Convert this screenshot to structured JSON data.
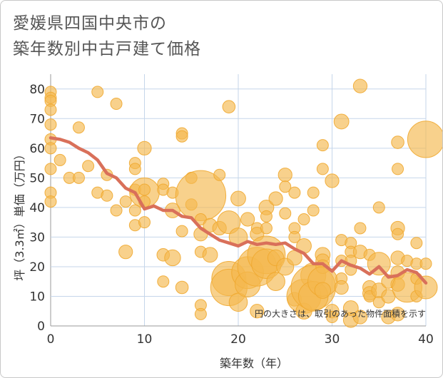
{
  "title": {
    "line1": "愛媛県四国中央市の",
    "line2": "築年数別中古戸建て価格"
  },
  "colors": {
    "bubble_fill": "#f5b84e",
    "bubble_stroke": "#f0a830",
    "line": "#d9705a",
    "grid": "#c5d6ea",
    "axis": "#999999"
  },
  "chart_data": {
    "type": "scatter",
    "xlabel": "築年数（年）",
    "ylabel": "坪（3.3㎡）単価（万円）",
    "xlim": [
      0,
      40
    ],
    "ylim": [
      0,
      85
    ],
    "xticks": [
      "0",
      "10",
      "20",
      "30",
      "40"
    ],
    "yticks": [
      "0",
      "10",
      "20",
      "30",
      "40",
      "50",
      "60",
      "70",
      "80"
    ],
    "note": "円の大きさは、取引のあった物件面積を示す",
    "average_line": {
      "x": [
        0,
        1,
        2,
        3,
        4,
        5,
        6,
        7,
        8,
        9,
        10,
        11,
        12,
        13,
        14,
        15,
        16,
        17,
        18,
        19,
        20,
        21,
        22,
        23,
        24,
        25,
        26,
        27,
        28,
        29,
        30,
        31,
        32,
        33,
        34,
        35,
        36,
        37,
        38,
        39,
        40
      ],
      "y": [
        63.5,
        63,
        62,
        60,
        58.5,
        56,
        51.5,
        50,
        46.5,
        45,
        39.5,
        40.5,
        39,
        39,
        37,
        36.5,
        33,
        31,
        29,
        28,
        27,
        28.5,
        27.5,
        28,
        27.5,
        28,
        26,
        24.5,
        21,
        21,
        18.5,
        22,
        20.5,
        19.5,
        17.5,
        20,
        16.5,
        17,
        19,
        18,
        14.5
      ]
    },
    "points": [
      {
        "x": 0,
        "y": 79,
        "s": 1
      },
      {
        "x": 0,
        "y": 77,
        "s": 1
      },
      {
        "x": 0,
        "y": 76,
        "s": 1
      },
      {
        "x": 0,
        "y": 73,
        "s": 1
      },
      {
        "x": 0,
        "y": 68,
        "s": 1
      },
      {
        "x": 0,
        "y": 63,
        "s": 1
      },
      {
        "x": 0,
        "y": 60,
        "s": 1
      },
      {
        "x": 0,
        "y": 53,
        "s": 1
      },
      {
        "x": 0,
        "y": 45,
        "s": 1
      },
      {
        "x": 0,
        "y": 42,
        "s": 1
      },
      {
        "x": 1,
        "y": 56,
        "s": 1
      },
      {
        "x": 2,
        "y": 50,
        "s": 1
      },
      {
        "x": 3,
        "y": 67,
        "s": 1
      },
      {
        "x": 3,
        "y": 50,
        "s": 1
      },
      {
        "x": 4,
        "y": 54,
        "s": 1
      },
      {
        "x": 5,
        "y": 79,
        "s": 1
      },
      {
        "x": 5,
        "y": 45,
        "s": 1
      },
      {
        "x": 6,
        "y": 51,
        "s": 1
      },
      {
        "x": 6,
        "y": 44,
        "s": 1
      },
      {
        "x": 7,
        "y": 75,
        "s": 1
      },
      {
        "x": 7,
        "y": 39,
        "s": 1
      },
      {
        "x": 8,
        "y": 42,
        "s": 1
      },
      {
        "x": 8,
        "y": 25,
        "s": 1.2
      },
      {
        "x": 9,
        "y": 55,
        "s": 1
      },
      {
        "x": 9,
        "y": 53,
        "s": 1
      },
      {
        "x": 9,
        "y": 46,
        "s": 1
      },
      {
        "x": 9,
        "y": 39,
        "s": 1
      },
      {
        "x": 9,
        "y": 34,
        "s": 1
      },
      {
        "x": 10,
        "y": 60,
        "s": 1.2
      },
      {
        "x": 10,
        "y": 45,
        "s": 2.6
      },
      {
        "x": 10,
        "y": 46,
        "s": 1
      },
      {
        "x": 10,
        "y": 42,
        "s": 1
      },
      {
        "x": 10,
        "y": 35,
        "s": 1
      },
      {
        "x": 12,
        "y": 48,
        "s": 1
      },
      {
        "x": 12,
        "y": 46,
        "s": 1
      },
      {
        "x": 12,
        "y": 24,
        "s": 1.1
      },
      {
        "x": 12,
        "y": 15,
        "s": 1
      },
      {
        "x": 13,
        "y": 45,
        "s": 1
      },
      {
        "x": 13,
        "y": 39,
        "s": 1.3
      },
      {
        "x": 13,
        "y": 23,
        "s": 1.4
      },
      {
        "x": 14,
        "y": 65,
        "s": 1
      },
      {
        "x": 14,
        "y": 64,
        "s": 1
      },
      {
        "x": 14,
        "y": 32,
        "s": 1
      },
      {
        "x": 14,
        "y": 13,
        "s": 1.1
      },
      {
        "x": 15,
        "y": 50,
        "s": 1
      },
      {
        "x": 15,
        "y": 41,
        "s": 1
      },
      {
        "x": 16,
        "y": 44,
        "s": 4.4
      },
      {
        "x": 16,
        "y": 36,
        "s": 1
      },
      {
        "x": 16,
        "y": 31,
        "s": 1.2
      },
      {
        "x": 16,
        "y": 25,
        "s": 1
      },
      {
        "x": 16,
        "y": 7,
        "s": 1
      },
      {
        "x": 16,
        "y": 4,
        "s": 1
      },
      {
        "x": 17,
        "y": 34,
        "s": 1.2
      },
      {
        "x": 17,
        "y": 24,
        "s": 1.3
      },
      {
        "x": 18,
        "y": 51,
        "s": 1
      },
      {
        "x": 18,
        "y": 33,
        "s": 1.2
      },
      {
        "x": 19,
        "y": 74,
        "s": 1.1
      },
      {
        "x": 19,
        "y": 35,
        "s": 2.0
      },
      {
        "x": 19,
        "y": 16,
        "s": 3.0
      },
      {
        "x": 19,
        "y": 13,
        "s": 3.2
      },
      {
        "x": 20,
        "y": 43,
        "s": 1.3
      },
      {
        "x": 20,
        "y": 30,
        "s": 1.6
      },
      {
        "x": 20,
        "y": 8,
        "s": 1.6
      },
      {
        "x": 21,
        "y": 36,
        "s": 1.2
      },
      {
        "x": 21,
        "y": 18,
        "s": 2.8
      },
      {
        "x": 21,
        "y": 14,
        "s": 2.2
      },
      {
        "x": 22,
        "y": 33,
        "s": 1
      },
      {
        "x": 22,
        "y": 31,
        "s": 1.2
      },
      {
        "x": 22,
        "y": 20,
        "s": 3.4
      },
      {
        "x": 22,
        "y": 5,
        "s": 1.2
      },
      {
        "x": 23,
        "y": 40,
        "s": 1.3
      },
      {
        "x": 23,
        "y": 37,
        "s": 1
      },
      {
        "x": 23,
        "y": 33,
        "s": 1
      },
      {
        "x": 23,
        "y": 24,
        "s": 3.3
      },
      {
        "x": 23,
        "y": 21,
        "s": 2.6
      },
      {
        "x": 24,
        "y": 43,
        "s": 1.2
      },
      {
        "x": 24,
        "y": 23,
        "s": 1.4
      },
      {
        "x": 24,
        "y": 15,
        "s": 1.6
      },
      {
        "x": 25,
        "y": 51,
        "s": 1.2
      },
      {
        "x": 25,
        "y": 47,
        "s": 1
      },
      {
        "x": 25,
        "y": 38,
        "s": 1
      },
      {
        "x": 25,
        "y": 20,
        "s": 1.5
      },
      {
        "x": 26,
        "y": 45,
        "s": 1
      },
      {
        "x": 26,
        "y": 33,
        "s": 1
      },
      {
        "x": 26,
        "y": 30,
        "s": 1
      },
      {
        "x": 26,
        "y": 23,
        "s": 1.3
      },
      {
        "x": 26,
        "y": 9,
        "s": 1.2
      },
      {
        "x": 27,
        "y": 36,
        "s": 1
      },
      {
        "x": 27,
        "y": 27,
        "s": 1.3
      },
      {
        "x": 27,
        "y": 10,
        "s": 3.0
      },
      {
        "x": 27,
        "y": 5,
        "s": 1.4
      },
      {
        "x": 28,
        "y": 45,
        "s": 1
      },
      {
        "x": 28,
        "y": 39,
        "s": 1
      },
      {
        "x": 28,
        "y": 17,
        "s": 2.2
      },
      {
        "x": 28,
        "y": 13,
        "s": 3.9
      },
      {
        "x": 28,
        "y": 10,
        "s": 2.6
      },
      {
        "x": 29,
        "y": 61,
        "s": 1
      },
      {
        "x": 29,
        "y": 53,
        "s": 1
      },
      {
        "x": 29,
        "y": 24,
        "s": 1.3
      },
      {
        "x": 29,
        "y": 22,
        "s": 1.2
      },
      {
        "x": 29,
        "y": 20,
        "s": 1.2
      },
      {
        "x": 29,
        "y": 15,
        "s": 2.6
      },
      {
        "x": 29,
        "y": 12,
        "s": 1.4
      },
      {
        "x": 30,
        "y": 49,
        "s": 1.2
      },
      {
        "x": 30,
        "y": 5,
        "s": 1.2
      },
      {
        "x": 30,
        "y": 3,
        "s": 1
      },
      {
        "x": 31,
        "y": 69,
        "s": 1.3
      },
      {
        "x": 31,
        "y": 29,
        "s": 1
      },
      {
        "x": 31,
        "y": 22,
        "s": 1
      },
      {
        "x": 31,
        "y": 16,
        "s": 1
      },
      {
        "x": 31,
        "y": 13,
        "s": 1.2
      },
      {
        "x": 32,
        "y": 28,
        "s": 1
      },
      {
        "x": 32,
        "y": 25,
        "s": 1
      },
      {
        "x": 32,
        "y": 22,
        "s": 1
      },
      {
        "x": 32,
        "y": 19,
        "s": 1
      },
      {
        "x": 32,
        "y": 6,
        "s": 1.3
      },
      {
        "x": 32,
        "y": 2,
        "s": 1.3
      },
      {
        "x": 33,
        "y": 81,
        "s": 1.2
      },
      {
        "x": 33,
        "y": 33,
        "s": 1
      },
      {
        "x": 33,
        "y": 25,
        "s": 1.2
      },
      {
        "x": 33,
        "y": 3,
        "s": 1.2
      },
      {
        "x": 34,
        "y": 24,
        "s": 1
      },
      {
        "x": 34,
        "y": 13,
        "s": 1.2
      },
      {
        "x": 34,
        "y": 11,
        "s": 1.2
      },
      {
        "x": 34,
        "y": 10,
        "s": 1
      },
      {
        "x": 35,
        "y": 40,
        "s": 1
      },
      {
        "x": 35,
        "y": 21,
        "s": 2.0
      },
      {
        "x": 35,
        "y": 12,
        "s": 1.3
      },
      {
        "x": 35,
        "y": 8,
        "s": 1
      },
      {
        "x": 36,
        "y": 15,
        "s": 1.2
      },
      {
        "x": 36,
        "y": 10,
        "s": 1.2
      },
      {
        "x": 36,
        "y": 3,
        "s": 1.2
      },
      {
        "x": 37,
        "y": 62,
        "s": 1.1
      },
      {
        "x": 37,
        "y": 53,
        "s": 1
      },
      {
        "x": 37,
        "y": 33,
        "s": 1.2
      },
      {
        "x": 37,
        "y": 31,
        "s": 1
      },
      {
        "x": 37,
        "y": 23,
        "s": 1.2
      },
      {
        "x": 37,
        "y": 18,
        "s": 1.2
      },
      {
        "x": 37,
        "y": 14,
        "s": 1.2
      },
      {
        "x": 37,
        "y": 4,
        "s": 1.2
      },
      {
        "x": 38,
        "y": 22,
        "s": 1
      },
      {
        "x": 38,
        "y": 13,
        "s": 2.6
      },
      {
        "x": 39,
        "y": 28,
        "s": 1
      },
      {
        "x": 39,
        "y": 21,
        "s": 1
      },
      {
        "x": 39,
        "y": 16,
        "s": 1
      },
      {
        "x": 39,
        "y": 10,
        "s": 1
      },
      {
        "x": 40,
        "y": 63,
        "s": 3.2
      },
      {
        "x": 40,
        "y": 21,
        "s": 1
      },
      {
        "x": 40,
        "y": 13,
        "s": 2.0
      }
    ]
  }
}
